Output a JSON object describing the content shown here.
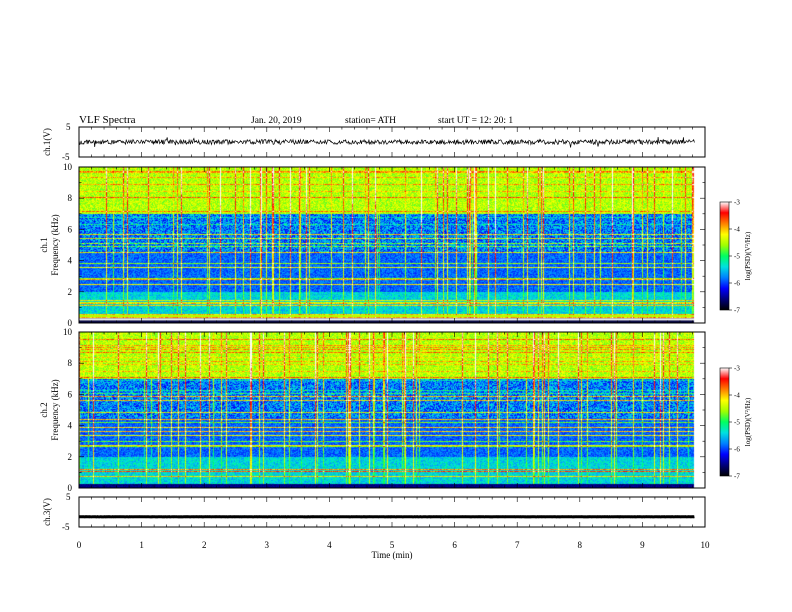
{
  "header": {
    "title": "VLF  Spectra",
    "date": "Jan. 20, 2019",
    "station": "station= ATH",
    "start": "start  UT  =    12: 20: 1"
  },
  "colors": {
    "trace": "#000000",
    "gap": "#ffffff",
    "colormap": [
      "#000000",
      "#00007a",
      "#0000ff",
      "#0080ff",
      "#00e0e0",
      "#00ff60",
      "#a0ff00",
      "#ffff00",
      "#ff8000",
      "#ff0000",
      "#ffffff"
    ]
  },
  "chart_data": [
    {
      "type": "line",
      "id": "ch1-waveform",
      "ylabel": "ch.1(V)",
      "ylim": [
        -5,
        5
      ],
      "yticks": [
        "5",
        "-5"
      ],
      "xlim": [
        0,
        10
      ],
      "description_of_signal": "noise around 0 V, amplitude about 1 V",
      "baseline": 0.0,
      "amplitude": 0.8
    },
    {
      "type": "heatmap",
      "id": "ch1-spectrogram",
      "xlim": [
        0,
        10
      ],
      "ylim": [
        0,
        10
      ],
      "xlabel": "",
      "ylabel_lines": [
        "ch.1",
        "Frequency  (kHz)"
      ],
      "yticks": [
        "0",
        "2",
        "4",
        "6",
        "8",
        "10"
      ],
      "time_extent_min": 9.83,
      "gap_freq_khz": [
        0.0,
        0.3
      ],
      "colorbar": {
        "label": "log(PSD)(V²/Hz)",
        "range": [
          -7,
          -3
        ],
        "ticks": [
          "-3",
          "-4",
          "-5",
          "-6",
          "-7"
        ]
      }
    },
    {
      "type": "heatmap",
      "id": "ch2-spectrogram",
      "xlim": [
        0,
        10
      ],
      "ylim": [
        0,
        10
      ],
      "ylabel_lines": [
        "ch.2",
        "Frequency  (kHz)"
      ],
      "yticks": [
        "0",
        "2",
        "4",
        "6",
        "8",
        "10"
      ],
      "time_extent_min": 9.83,
      "colorbar": {
        "label": "log(PSD)(V²/Hz)",
        "range": [
          -7,
          -3
        ],
        "ticks": [
          "-3",
          "-4",
          "-5",
          "-6",
          "-7"
        ]
      }
    },
    {
      "type": "line",
      "id": "ch3-waveform",
      "ylabel": "ch.3(V)",
      "ylim": [
        -5,
        5
      ],
      "yticks": [
        "5",
        "-5"
      ],
      "xlim": [
        0,
        10
      ],
      "baseline": -1.6,
      "amplitude": 0.15,
      "xlabel": "Time  (min)",
      "xticks": [
        "0",
        "1",
        "2",
        "3",
        "4",
        "5",
        "6",
        "7",
        "8",
        "9",
        "10"
      ]
    }
  ]
}
